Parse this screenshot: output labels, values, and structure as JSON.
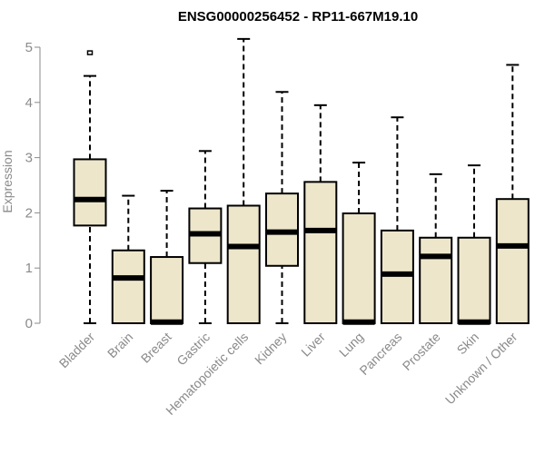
{
  "chart_data": {
    "type": "boxplot",
    "title": "ENSG00000256452 - RP11-667M19.10",
    "ylabel": "Expression",
    "xlabel": "",
    "ylim": [
      0,
      5
    ],
    "yticks": [
      0,
      1,
      2,
      3,
      4,
      5
    ],
    "grid": false,
    "legend": "none",
    "box_color": "#ede6cb",
    "categories": [
      "Bladder",
      "Brain",
      "Breast",
      "Gastric",
      "Hematopoietic cells",
      "Kidney",
      "Liver",
      "Lung",
      "Pancreas",
      "Prostate",
      "Skin",
      "Unknown / Other"
    ],
    "boxes": [
      {
        "category": "Bladder",
        "min": 0.0,
        "q1": 1.77,
        "median": 2.24,
        "q3": 2.97,
        "max": 4.48,
        "outliers": [
          4.9
        ]
      },
      {
        "category": "Brain",
        "min": 0.0,
        "q1": 0.0,
        "median": 0.82,
        "q3": 1.32,
        "max": 2.31,
        "outliers": []
      },
      {
        "category": "Breast",
        "min": 0.0,
        "q1": 0.0,
        "median": 0.02,
        "q3": 1.2,
        "max": 2.4,
        "outliers": []
      },
      {
        "category": "Gastric",
        "min": 0.0,
        "q1": 1.09,
        "median": 1.62,
        "q3": 2.08,
        "max": 3.12,
        "outliers": []
      },
      {
        "category": "Hematopoietic cells",
        "min": 0.0,
        "q1": 0.0,
        "median": 1.39,
        "q3": 2.13,
        "max": 5.15,
        "outliers": []
      },
      {
        "category": "Kidney",
        "min": 0.0,
        "q1": 1.04,
        "median": 1.65,
        "q3": 2.35,
        "max": 4.19,
        "outliers": []
      },
      {
        "category": "Liver",
        "min": 0.0,
        "q1": 0.0,
        "median": 1.68,
        "q3": 2.56,
        "max": 3.95,
        "outliers": []
      },
      {
        "category": "Lung",
        "min": 0.0,
        "q1": 0.0,
        "median": 0.02,
        "q3": 1.99,
        "max": 2.91,
        "outliers": []
      },
      {
        "category": "Pancreas",
        "min": 0.0,
        "q1": 0.0,
        "median": 0.89,
        "q3": 1.68,
        "max": 3.73,
        "outliers": []
      },
      {
        "category": "Prostate",
        "min": 0.0,
        "q1": 0.0,
        "median": 1.21,
        "q3": 1.55,
        "max": 2.7,
        "outliers": []
      },
      {
        "category": "Skin",
        "min": 0.0,
        "q1": 0.0,
        "median": 0.02,
        "q3": 1.55,
        "max": 2.86,
        "outliers": []
      },
      {
        "category": "Unknown / Other",
        "min": 0.0,
        "q1": 0.0,
        "median": 1.4,
        "q3": 2.25,
        "max": 4.68,
        "outliers": []
      }
    ]
  }
}
